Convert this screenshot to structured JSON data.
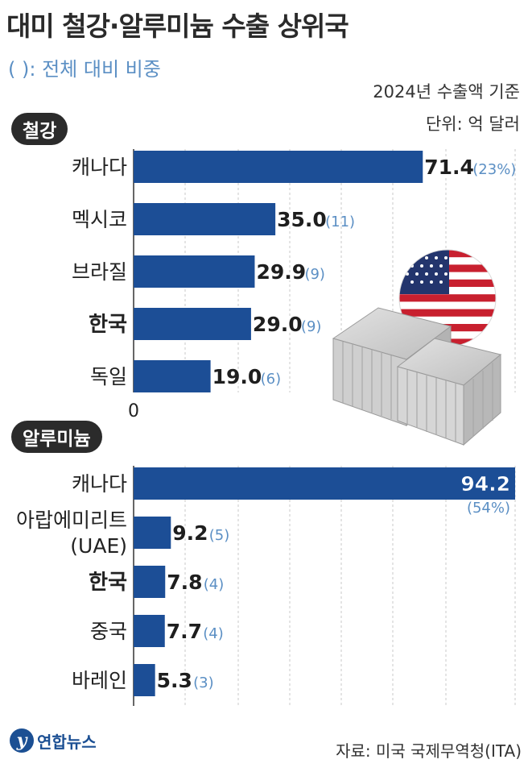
{
  "header": {
    "title": "대미 철강·알루미늄 수출 상위국",
    "subtitle": "(   ): 전체 대비 비중",
    "basis": "2024년 수출액 기준",
    "unit": "단위: 억 달러"
  },
  "chart_data": [
    {
      "type": "bar",
      "orientation": "horizontal",
      "section_label": "철강",
      "categories": [
        "캐나다",
        "멕시코",
        "브라질",
        "한국",
        "독일"
      ],
      "values": [
        71.4,
        35.0,
        29.9,
        29.0,
        19.0
      ],
      "value_labels": [
        "71.4",
        "35.0",
        "29.9",
        "29.0",
        "19.0"
      ],
      "share_labels": [
        "(23%)",
        "(11)",
        "(9)",
        "(9)",
        "(6)"
      ],
      "highlight": "한국",
      "axis_zero_label": "0",
      "xlim": [
        0,
        94.2
      ]
    },
    {
      "type": "bar",
      "orientation": "horizontal",
      "section_label": "알루미늄",
      "categories": [
        "캐나다",
        "아랍에미리트 (UAE)",
        "한국",
        "중국",
        "바레인"
      ],
      "category_lines": [
        [
          "캐나다"
        ],
        [
          "아랍에미리트",
          "(UAE)"
        ],
        [
          "한국"
        ],
        [
          "중국"
        ],
        [
          "바레인"
        ]
      ],
      "values": [
        94.2,
        9.2,
        7.8,
        7.7,
        5.3
      ],
      "value_labels": [
        "94.2",
        "9.2",
        "7.8",
        "7.7",
        "5.3"
      ],
      "share_labels": [
        "(54%)",
        "(5)",
        "(4)",
        "(4)",
        "(3)"
      ],
      "highlight": "한국",
      "xlim": [
        0,
        94.2
      ]
    }
  ],
  "colors": {
    "bar": "#1c4e96",
    "share_text": "#5b8fc4",
    "grid": "#c9c9c9",
    "badge": "#2b2b2b"
  },
  "footer": {
    "logo_mark": "y",
    "logo_text": "연합뉴스",
    "source": "자료: 미국 국제무역청(ITA)"
  },
  "illustration": {
    "icons": [
      "us-flag-icon",
      "shipping-container-icon"
    ]
  }
}
